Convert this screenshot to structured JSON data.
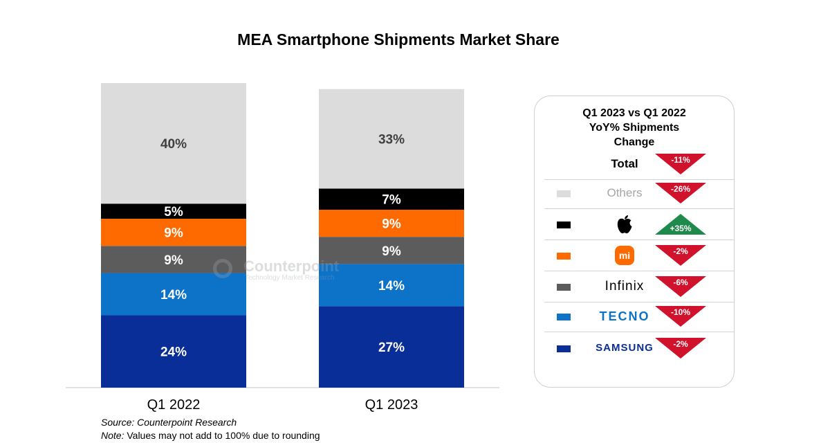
{
  "chart_data": [
    {
      "type": "bar",
      "stacked": true,
      "title": "MEA Smartphone Shipments Market Share",
      "categories": [
        "Q1 2022",
        "Q1 2023"
      ],
      "series": [
        {
          "values": [
            24,
            27
          ],
          "color": "#0a2e98"
        },
        {
          "values": [
            14,
            14
          ],
          "color": "#0c73c9"
        },
        {
          "values": [
            9,
            9
          ],
          "color": "#5c5c5c"
        },
        {
          "values": [
            9,
            9
          ],
          "color": "#ff6a00"
        },
        {
          "values": [
            5,
            7
          ],
          "color": "#000000"
        },
        {
          "values": [
            40,
            33
          ],
          "color": "#dcdcdc"
        }
      ],
      "labels": [
        [
          "24%",
          "14%",
          "9%",
          "9%",
          "5%",
          "40%"
        ],
        [
          "27%",
          "14%",
          "9%",
          "9%",
          "7%",
          "33%"
        ]
      ],
      "label_colors": [
        "#ffffff",
        "#ffffff",
        "#ffffff",
        "#ffffff",
        "#ffffff",
        "#404040"
      ],
      "ylim": [
        0,
        101
      ]
    },
    {
      "type": "table",
      "title": "Q1 2023 vs Q1 2022 YoY% Shipments Change",
      "rows": [
        {
          "brand": "Total",
          "logo": "text",
          "change": -11,
          "label": "-11%"
        },
        {
          "brand": "Others",
          "logo": "text",
          "change": -26,
          "label": "-26%"
        },
        {
          "brand": "Apple",
          "logo": "apple-icon",
          "change": 35,
          "label": "+35%"
        },
        {
          "brand": "Xiaomi",
          "logo": "xiaomi-icon",
          "change": -2,
          "label": "-2%"
        },
        {
          "brand": "Infinix",
          "logo": "text",
          "change": -6,
          "label": "-6%"
        },
        {
          "brand": "TECNO",
          "logo": "text",
          "change": -10,
          "label": "-10%"
        },
        {
          "brand": "SAMSUNG",
          "logo": "text",
          "change": -2,
          "label": "-2%"
        }
      ]
    }
  ],
  "chart": {
    "title": "MEA Smartphone Shipments Market Share",
    "categories": [
      "Q1 2022",
      "Q1 2023"
    ]
  },
  "watermark": {
    "name": "Counterpoint",
    "tagline": "Technology Market Research"
  },
  "footer": {
    "source_label": "Source:",
    "source": "Counterpoint Research",
    "note_label": "Note:",
    "note": "Values may not add to 100% due to rounding"
  },
  "panel": {
    "title_line1": "Q1 2023 vs Q1 2022",
    "title_line2": "YoY% Shipments",
    "title_line3": "Change",
    "rows": [
      {
        "text": "Total",
        "swatch": null,
        "label": "-11%",
        "up": false
      },
      {
        "text": "Others",
        "swatch": "#dcdcdc",
        "label": "-26%",
        "up": false
      },
      {
        "text": "",
        "swatch": "#000000",
        "label": "+35%",
        "up": true
      },
      {
        "text": "mi",
        "swatch": "#ff6a00",
        "label": "-2%",
        "up": false
      },
      {
        "text": "Infinix",
        "swatch": "#5c5c5c",
        "label": "-6%",
        "up": false
      },
      {
        "text": "TECNO",
        "swatch": "#0c73c9",
        "label": "-10%",
        "up": false
      },
      {
        "text": "SAMSUNG",
        "swatch": "#0a2e98",
        "label": "-2%",
        "up": false
      }
    ],
    "colors": {
      "down": "#d0122c",
      "up": "#1f8a4c"
    }
  }
}
